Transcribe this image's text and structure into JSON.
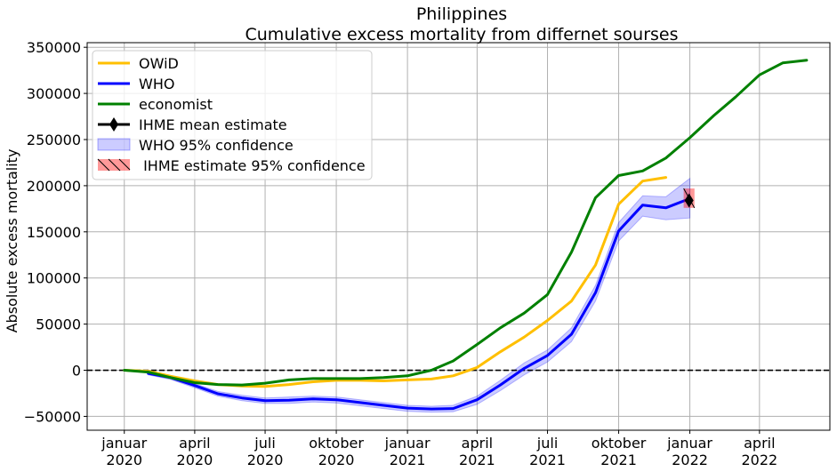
{
  "chart_data": {
    "type": "line",
    "title": "Philippines",
    "subtitle": "Cumulative excess mortality from differnet sourses",
    "ylabel": "Absolute excess mortality",
    "xlabel": "",
    "ylim": [
      -65000,
      355000
    ],
    "xlim": [
      "2019-11-14",
      "2022-07-01"
    ],
    "grid": true,
    "legend_position": "upper left",
    "y_ticks": [
      {
        "value": 350000,
        "label": "350000"
      },
      {
        "value": 300000,
        "label": "300000"
      },
      {
        "value": 250000,
        "label": "250000"
      },
      {
        "value": 200000,
        "label": "200000"
      },
      {
        "value": 150000,
        "label": "150000"
      },
      {
        "value": 100000,
        "label": "100000"
      },
      {
        "value": 50000,
        "label": "50000"
      },
      {
        "value": 0,
        "label": "0"
      },
      {
        "value": -50000,
        "label": "−50000"
      }
    ],
    "x_ticks": [
      {
        "date": "2020-01-01",
        "line1": "januar",
        "line2": "2020"
      },
      {
        "date": "2020-04-01",
        "line1": "april",
        "line2": "2020"
      },
      {
        "date": "2020-07-01",
        "line1": "juli",
        "line2": "2020"
      },
      {
        "date": "2020-10-01",
        "line1": "oktober",
        "line2": "2020"
      },
      {
        "date": "2021-01-01",
        "line1": "januar",
        "line2": "2021"
      },
      {
        "date": "2021-04-01",
        "line1": "april",
        "line2": "2021"
      },
      {
        "date": "2021-07-01",
        "line1": "juli",
        "line2": "2021"
      },
      {
        "date": "2021-10-01",
        "line1": "oktober",
        "line2": "2021"
      },
      {
        "date": "2022-01-01",
        "line1": "januar",
        "line2": "2022"
      },
      {
        "date": "2022-04-01",
        "line1": "april",
        "line2": "2022"
      }
    ],
    "zero_line": {
      "y": 0,
      "style": "dashed",
      "color": "#000000"
    },
    "series": [
      {
        "name": "OWiD",
        "color": "#ffbf00",
        "points": [
          [
            "2020-01-01",
            0
          ],
          [
            "2020-02-01",
            -1000
          ],
          [
            "2020-03-01",
            -6500
          ],
          [
            "2020-04-01",
            -11500
          ],
          [
            "2020-05-01",
            -15500
          ],
          [
            "2020-06-01",
            -17000
          ],
          [
            "2020-07-01",
            -17500
          ],
          [
            "2020-08-01",
            -15500
          ],
          [
            "2020-09-01",
            -12500
          ],
          [
            "2020-10-01",
            -11000
          ],
          [
            "2020-11-01",
            -11000
          ],
          [
            "2020-12-01",
            -11500
          ],
          [
            "2021-01-01",
            -10500
          ],
          [
            "2021-02-01",
            -9500
          ],
          [
            "2021-03-01",
            -6000
          ],
          [
            "2021-04-01",
            3000
          ],
          [
            "2021-05-01",
            20000
          ],
          [
            "2021-06-01",
            36000
          ],
          [
            "2021-07-01",
            54000
          ],
          [
            "2021-08-01",
            75000
          ],
          [
            "2021-09-01",
            114000
          ],
          [
            "2021-10-01",
            180000
          ],
          [
            "2021-11-01",
            205000
          ],
          [
            "2021-12-01",
            209000
          ]
        ]
      },
      {
        "name": "WHO",
        "color": "#0000ff",
        "points": [
          [
            "2020-02-01",
            -3500
          ],
          [
            "2020-03-01",
            -8000
          ],
          [
            "2020-04-01",
            -16500
          ],
          [
            "2020-05-01",
            -25500
          ],
          [
            "2020-06-01",
            -30000
          ],
          [
            "2020-07-01",
            -33000
          ],
          [
            "2020-08-01",
            -32500
          ],
          [
            "2020-09-01",
            -31000
          ],
          [
            "2020-10-01",
            -32000
          ],
          [
            "2020-11-01",
            -35000
          ],
          [
            "2020-12-01",
            -38000
          ],
          [
            "2021-01-01",
            -41000
          ],
          [
            "2021-02-01",
            -42000
          ],
          [
            "2021-03-01",
            -41500
          ],
          [
            "2021-04-01",
            -32000
          ],
          [
            "2021-05-01",
            -16000
          ],
          [
            "2021-06-01",
            2000
          ],
          [
            "2021-07-01",
            16000
          ],
          [
            "2021-08-01",
            39000
          ],
          [
            "2021-09-01",
            84000
          ],
          [
            "2021-10-01",
            151000
          ],
          [
            "2021-11-01",
            179000
          ],
          [
            "2021-12-01",
            176000
          ],
          [
            "2022-01-01",
            186000
          ]
        ]
      },
      {
        "name": "economist",
        "color": "#008000",
        "points": [
          [
            "2020-01-01",
            0
          ],
          [
            "2020-02-01",
            -2000
          ],
          [
            "2020-03-01",
            -8000
          ],
          [
            "2020-04-01",
            -13500
          ],
          [
            "2020-05-01",
            -15500
          ],
          [
            "2020-06-01",
            -16000
          ],
          [
            "2020-07-01",
            -14000
          ],
          [
            "2020-08-01",
            -10500
          ],
          [
            "2020-09-01",
            -9000
          ],
          [
            "2020-10-01",
            -9000
          ],
          [
            "2020-11-01",
            -9000
          ],
          [
            "2020-12-01",
            -8000
          ],
          [
            "2021-01-01",
            -6000
          ],
          [
            "2021-02-01",
            0
          ],
          [
            "2021-03-01",
            10000
          ],
          [
            "2021-04-01",
            28000
          ],
          [
            "2021-05-01",
            46000
          ],
          [
            "2021-06-01",
            62000
          ],
          [
            "2021-07-01",
            82000
          ],
          [
            "2021-08-01",
            128000
          ],
          [
            "2021-09-01",
            187000
          ],
          [
            "2021-10-01",
            211000
          ],
          [
            "2021-11-01",
            216000
          ],
          [
            "2021-12-01",
            230000
          ],
          [
            "2022-01-01",
            252000
          ],
          [
            "2022-02-01",
            276000
          ],
          [
            "2022-03-01",
            296000
          ],
          [
            "2022-04-01",
            320000
          ],
          [
            "2022-05-01",
            333000
          ],
          [
            "2022-06-01",
            336000
          ]
        ]
      }
    ],
    "who_confidence": {
      "name": "WHO 95% confidence",
      "color": "#0000ff",
      "opacity": 0.2,
      "upper": [
        [
          "2020-02-01",
          -2000
        ],
        [
          "2020-03-01",
          -6000
        ],
        [
          "2020-04-01",
          -14500
        ],
        [
          "2020-05-01",
          -23000
        ],
        [
          "2020-06-01",
          -27000
        ],
        [
          "2020-07-01",
          -30000
        ],
        [
          "2020-08-01",
          -29000
        ],
        [
          "2020-09-01",
          -28000
        ],
        [
          "2020-10-01",
          -29000
        ],
        [
          "2020-11-01",
          -32000
        ],
        [
          "2020-12-01",
          -35000
        ],
        [
          "2021-01-01",
          -38000
        ],
        [
          "2021-02-01",
          -39000
        ],
        [
          "2021-03-01",
          -38000
        ],
        [
          "2021-04-01",
          -28000
        ],
        [
          "2021-05-01",
          -11000
        ],
        [
          "2021-06-01",
          8000
        ],
        [
          "2021-07-01",
          22000
        ],
        [
          "2021-08-01",
          46000
        ],
        [
          "2021-09-01",
          92000
        ],
        [
          "2021-10-01",
          160000
        ],
        [
          "2021-11-01",
          189000
        ],
        [
          "2021-12-01",
          188000
        ],
        [
          "2022-01-01",
          208000
        ]
      ],
      "lower": [
        [
          "2020-02-01",
          -5000
        ],
        [
          "2020-03-01",
          -10000
        ],
        [
          "2020-04-01",
          -19000
        ],
        [
          "2020-05-01",
          -28000
        ],
        [
          "2020-06-01",
          -33000
        ],
        [
          "2020-07-01",
          -36000
        ],
        [
          "2020-08-01",
          -36000
        ],
        [
          "2020-09-01",
          -34500
        ],
        [
          "2020-10-01",
          -35500
        ],
        [
          "2020-11-01",
          -38500
        ],
        [
          "2020-12-01",
          -41500
        ],
        [
          "2021-01-01",
          -44500
        ],
        [
          "2021-02-01",
          -45500
        ],
        [
          "2021-03-01",
          -45000
        ],
        [
          "2021-04-01",
          -37000
        ],
        [
          "2021-05-01",
          -22000
        ],
        [
          "2021-06-01",
          -5000
        ],
        [
          "2021-07-01",
          9000
        ],
        [
          "2021-08-01",
          31000
        ],
        [
          "2021-09-01",
          75000
        ],
        [
          "2021-10-01",
          140000
        ],
        [
          "2021-11-01",
          167000
        ],
        [
          "2021-12-01",
          163000
        ],
        [
          "2022-01-01",
          165000
        ]
      ]
    },
    "ihme": {
      "name": "IHME mean estimate",
      "date": "2021-12-31",
      "mean": 184000,
      "ci_name": " IHME estimate 95% confidence",
      "ci_low": 176000,
      "ci_high": 197000,
      "ci_start": "2021-12-24",
      "ci_end": "2022-01-07",
      "ci_color": "#ff0000",
      "ci_opacity": 0.4
    }
  }
}
